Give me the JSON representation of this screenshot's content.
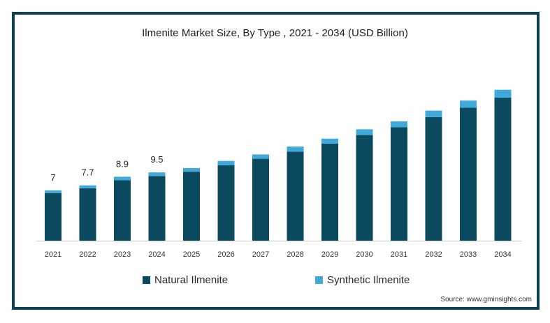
{
  "chart_data": {
    "type": "bar",
    "stacked": true,
    "title": "Ilmenite Market Size, By Type , 2021 - 2034 (USD Billion)",
    "categories": [
      "2021",
      "2022",
      "2023",
      "2024",
      "2025",
      "2026",
      "2027",
      "2028",
      "2029",
      "2030",
      "2031",
      "2032",
      "2033",
      "2034"
    ],
    "series": [
      {
        "name": "Natural Ilmenite",
        "color": "#0b4a5e",
        "values": [
          6.6,
          7.3,
          8.4,
          9.0,
          9.6,
          10.5,
          11.4,
          12.4,
          13.5,
          14.7,
          15.8,
          17.2,
          18.5,
          19.9
        ]
      },
      {
        "name": "Synthetic Ilmenite",
        "color": "#3fa9dc",
        "values": [
          0.4,
          0.4,
          0.5,
          0.5,
          0.5,
          0.6,
          0.6,
          0.7,
          0.7,
          0.8,
          0.8,
          0.9,
          1.0,
          1.1
        ]
      }
    ],
    "data_labels": [
      "7",
      "7.7",
      "8.9",
      "9.5"
    ],
    "ylim": [
      0,
      22
    ],
    "grid": false,
    "legend": "bottom"
  },
  "source": "Source: www.gminsights.com"
}
